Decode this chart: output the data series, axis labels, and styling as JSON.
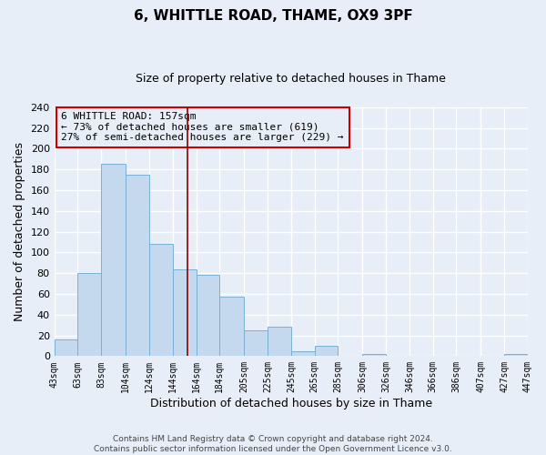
{
  "title": "6, WHITTLE ROAD, THAME, OX9 3PF",
  "subtitle": "Size of property relative to detached houses in Thame",
  "xlabel": "Distribution of detached houses by size in Thame",
  "ylabel": "Number of detached properties",
  "bin_edges": [
    43,
    63,
    83,
    104,
    124,
    144,
    164,
    184,
    205,
    225,
    245,
    265,
    285,
    306,
    326,
    346,
    366,
    386,
    407,
    427,
    447
  ],
  "bar_heights": [
    16,
    80,
    185,
    175,
    108,
    84,
    78,
    57,
    25,
    28,
    5,
    10,
    0,
    2,
    0,
    0,
    0,
    0,
    0,
    2
  ],
  "bar_color": "#c5d9ee",
  "bar_edge_color": "#7aafd4",
  "property_size": 157,
  "vline_color": "#8b0000",
  "annotation_line1": "6 WHITTLE ROAD: 157sqm",
  "annotation_line2": "← 73% of detached houses are smaller (619)",
  "annotation_line3": "27% of semi-detached houses are larger (229) →",
  "annotation_box_edgecolor": "#cc0000",
  "ylim": [
    0,
    240
  ],
  "yticks": [
    0,
    20,
    40,
    60,
    80,
    100,
    120,
    140,
    160,
    180,
    200,
    220,
    240
  ],
  "tick_labels": [
    "43sqm",
    "63sqm",
    "83sqm",
    "104sqm",
    "124sqm",
    "144sqm",
    "164sqm",
    "184sqm",
    "205sqm",
    "225sqm",
    "245sqm",
    "265sqm",
    "285sqm",
    "306sqm",
    "326sqm",
    "346sqm",
    "366sqm",
    "386sqm",
    "407sqm",
    "427sqm",
    "447sqm"
  ],
  "footer_line1": "Contains HM Land Registry data © Crown copyright and database right 2024.",
  "footer_line2": "Contains public sector information licensed under the Open Government Licence v3.0.",
  "background_color": "#e8eef7",
  "plot_bg_color": "#e8eef7",
  "grid_color": "#ffffff",
  "title_fontsize": 11,
  "subtitle_fontsize": 9,
  "xlabel_fontsize": 9,
  "ylabel_fontsize": 9,
  "tick_fontsize": 7,
  "ytick_fontsize": 8,
  "footer_fontsize": 6.5,
  "annot_fontsize": 8
}
